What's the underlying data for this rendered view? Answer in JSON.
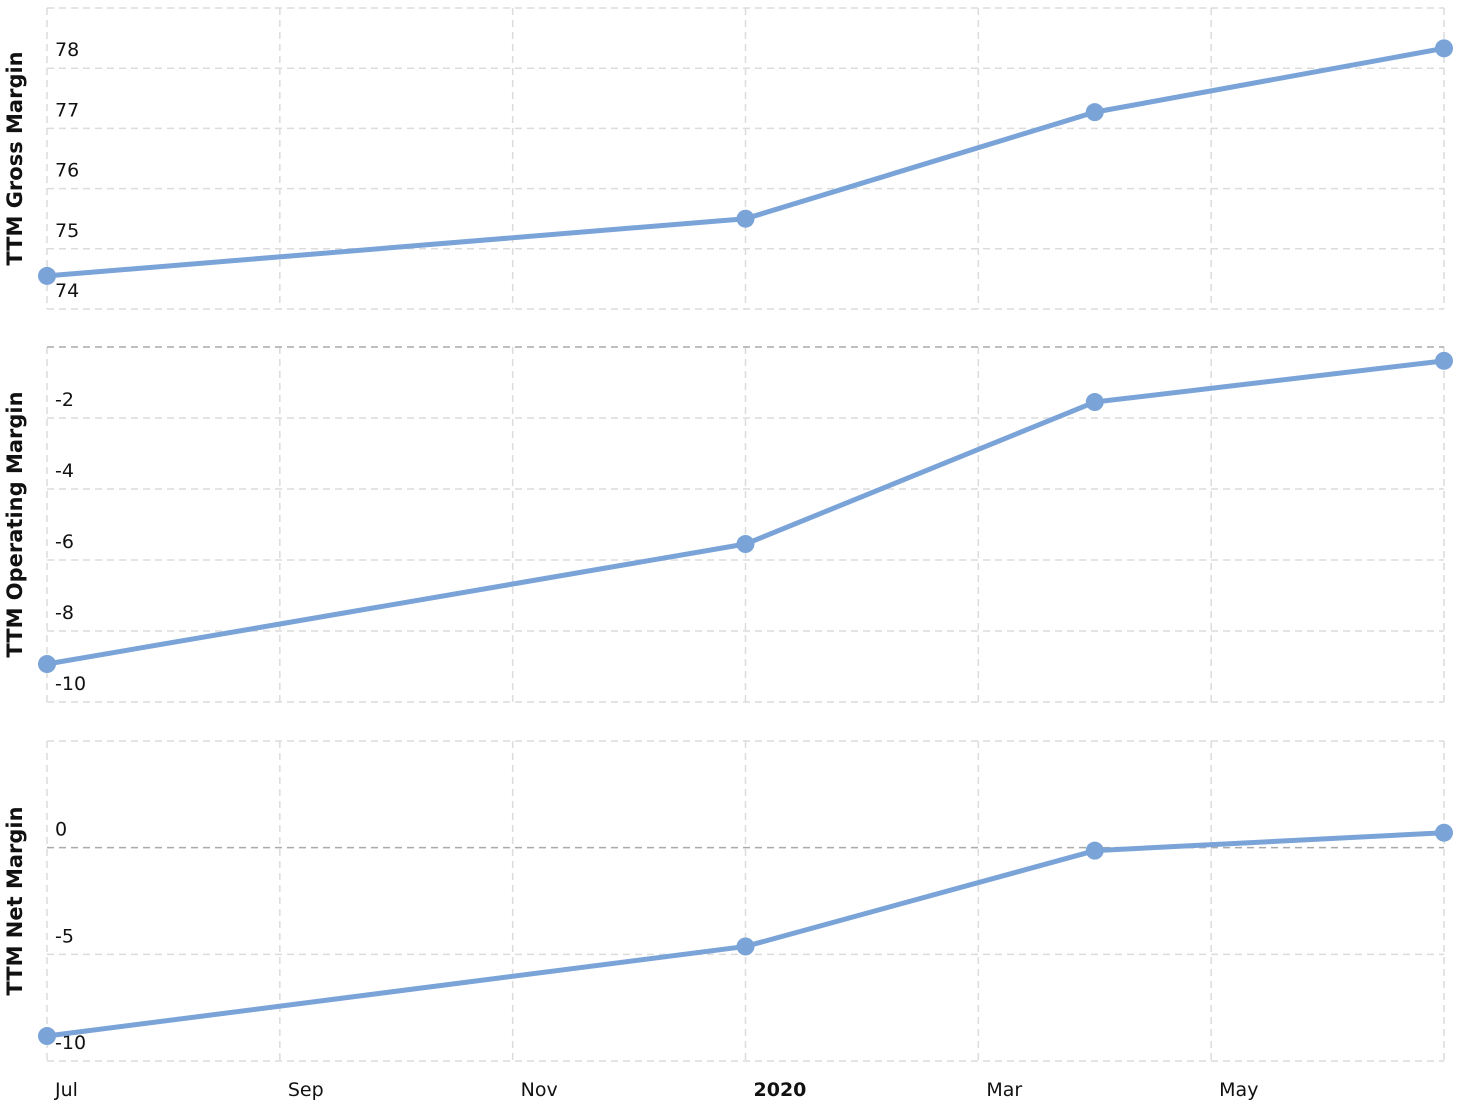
{
  "x_axis": {
    "xlim": [
      0,
      12
    ],
    "xticks": [
      {
        "value": 0,
        "label": "Jul"
      },
      {
        "value": 2,
        "label": "Sep"
      },
      {
        "value": 4,
        "label": "Nov"
      },
      {
        "value": 6,
        "label": "2020",
        "bold": true
      },
      {
        "value": 8,
        "label": "Mar"
      },
      {
        "value": 10,
        "label": "May"
      }
    ]
  },
  "chart_data": [
    {
      "type": "line",
      "y_label": "TTM Gross Margin",
      "color": "#7aa3d8",
      "x": [
        0,
        6,
        9,
        12
      ],
      "values": [
        74.55,
        75.5,
        77.27,
        78.33
      ],
      "ylim": [
        74,
        79
      ],
      "yticks": [
        74,
        75,
        76,
        77,
        78
      ],
      "grid": true
    },
    {
      "type": "line",
      "y_label": "TTM Operating Margin",
      "color": "#7aa3d8",
      "x": [
        0,
        6,
        9,
        12
      ],
      "values": [
        -8.93,
        -5.55,
        -1.55,
        -0.39
      ],
      "ylim": [
        -10,
        0
      ],
      "yticks": [
        -10,
        -8,
        -6,
        -4,
        -2
      ],
      "grid": true
    },
    {
      "type": "line",
      "y_label": "TTM Net Margin",
      "color": "#7aa3d8",
      "x": [
        0,
        6,
        9,
        12
      ],
      "values": [
        -8.83,
        -4.63,
        -0.14,
        0.7
      ],
      "ylim": [
        -10,
        5
      ],
      "yticks": [
        -10,
        -5,
        0
      ],
      "grid": true
    }
  ]
}
